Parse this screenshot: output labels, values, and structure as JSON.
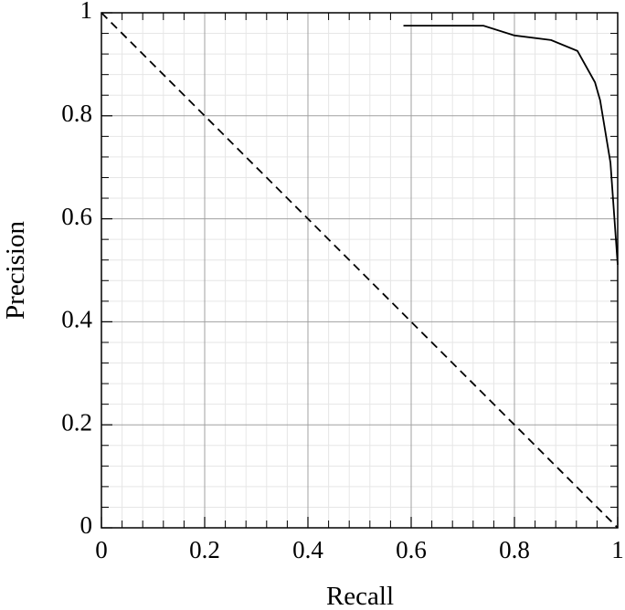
{
  "chart_data": {
    "type": "line",
    "x_label": "Recall",
    "y_label": "Precision",
    "xlim": [
      0,
      1
    ],
    "ylim": [
      0,
      1
    ],
    "xticks": [
      0,
      0.2,
      0.4,
      0.6,
      0.8,
      1
    ],
    "yticks": [
      0,
      0.2,
      0.4,
      0.6,
      0.8,
      1
    ],
    "xminorticks": [
      0.04,
      0.08,
      0.12,
      0.16,
      0.24,
      0.28,
      0.32,
      0.36,
      0.44,
      0.48,
      0.52,
      0.56,
      0.64,
      0.68,
      0.72,
      0.76,
      0.84,
      0.88,
      0.92,
      0.96
    ],
    "yminorticks": [
      0.04,
      0.08,
      0.12,
      0.16,
      0.24,
      0.28,
      0.32,
      0.36,
      0.44,
      0.48,
      0.52,
      0.56,
      0.64,
      0.68,
      0.72,
      0.76,
      0.84,
      0.88,
      0.92,
      0.96
    ],
    "grid": true,
    "minor_grid": true,
    "series": [
      {
        "color": "#000000",
        "dash": false,
        "x": [
          0.585,
          0.74,
          0.8,
          0.871,
          0.922,
          0.956,
          0.966,
          0.986,
          1.0
        ],
        "values": [
          0.975,
          0.975,
          0.956,
          0.947,
          0.926,
          0.865,
          0.83,
          0.709,
          0.511
        ]
      },
      {
        "color": "#000000",
        "dash": true,
        "x": [
          0,
          1
        ],
        "values": [
          1,
          0
        ]
      }
    ]
  }
}
